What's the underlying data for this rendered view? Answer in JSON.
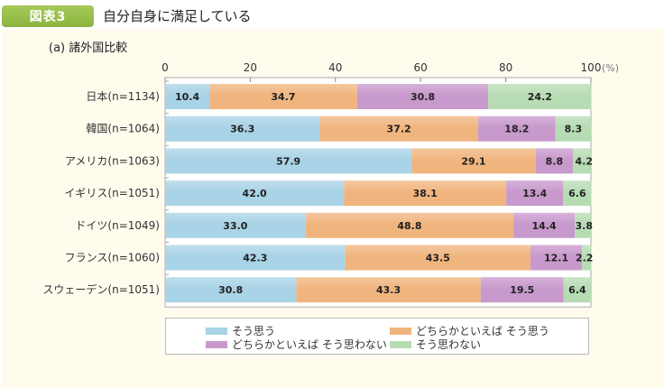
{
  "header": {
    "figure_label": "図表3",
    "title": "自分自身に満足している",
    "subtitle": "(a) 諸外国比較"
  },
  "colors": {
    "agree": "#a9d3e6",
    "somewhat_agree": "#f0b57e",
    "somewhat_disagree": "#c899cc",
    "disagree": "#b7dcb4",
    "background": "#fffcee",
    "badge": "#97bd4a"
  },
  "chart_data": {
    "type": "bar",
    "orientation": "horizontal",
    "stacked": true,
    "title": "自分自身に満足している",
    "subtitle": "(a) 諸外国比較",
    "xlabel": "(%)",
    "ylabel": "",
    "xlim": [
      0,
      100
    ],
    "xticks": [
      0,
      20,
      40,
      60,
      80,
      100
    ],
    "unit_label": "(%)",
    "grid": false,
    "legend_position": "bottom",
    "categories": [
      "日本(n=1134)",
      "韓国(n=1064)",
      "アメリカ(n=1063)",
      "イギリス(n=1051)",
      "ドイツ(n=1049)",
      "フランス(n=1060)",
      "スウェーデン(n=1051)"
    ],
    "series": [
      {
        "name": "そう思う",
        "color_key": "agree",
        "values": [
          10.4,
          36.3,
          57.9,
          42.0,
          33.0,
          42.3,
          30.8
        ]
      },
      {
        "name": "どちらかといえば そう思う",
        "color_key": "somewhat_agree",
        "values": [
          34.7,
          37.2,
          29.1,
          38.1,
          48.8,
          43.5,
          43.3
        ]
      },
      {
        "name": "どちらかといえば そう思わない",
        "color_key": "somewhat_disagree",
        "values": [
          30.8,
          18.2,
          8.8,
          13.4,
          14.4,
          12.1,
          19.5
        ]
      },
      {
        "name": "そう思わない",
        "color_key": "disagree",
        "values": [
          24.2,
          8.3,
          4.2,
          6.6,
          3.8,
          2.2,
          6.4
        ]
      }
    ]
  }
}
